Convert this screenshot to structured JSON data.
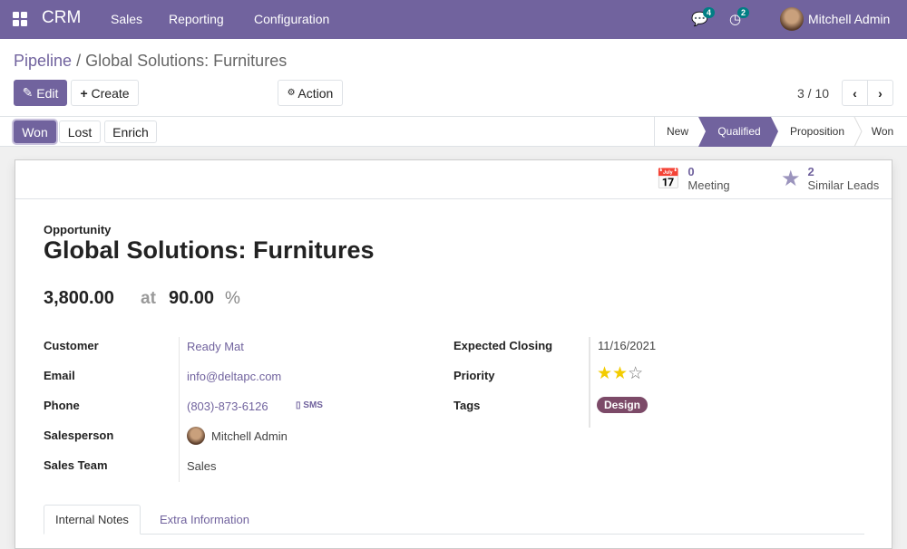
{
  "navbar": {
    "app": "CRM",
    "menus": [
      "Sales",
      "Reporting",
      "Configuration"
    ],
    "messages_count": "4",
    "activities_count": "2",
    "user": "Mitchell Admin",
    "color": "#71639e"
  },
  "breadcrumb": {
    "parent": "Pipeline",
    "separator": "/",
    "current": "Global Solutions: Furnitures"
  },
  "toolbar": {
    "edit": "Edit",
    "create": "Create",
    "action": "Action",
    "pager": "3 / 10"
  },
  "statusbar": {
    "buttons": [
      "Won",
      "Lost",
      "Enrich"
    ],
    "stages": [
      "New",
      "Qualified",
      "Proposition",
      "Won"
    ],
    "active_stage": "Qualified"
  },
  "smart_buttons": [
    {
      "count": "0",
      "label": "Meeting",
      "icon": "calendar-icon"
    },
    {
      "count": "2",
      "label": "Similar Leads",
      "icon": "star-icon"
    }
  ],
  "record": {
    "type_label": "Opportunity",
    "name": "Global Solutions: Furnitures",
    "revenue": "3,800.00",
    "at": "at",
    "probability": "90.00",
    "pct": "%"
  },
  "fields_left": [
    {
      "label": "Customer",
      "value": "Ready Mat"
    },
    {
      "label": "Email",
      "value": "info@deltapc.com"
    },
    {
      "label": "Phone",
      "value": "(803)-873-6126",
      "extra": "SMS"
    },
    {
      "label": "Salesperson",
      "value": "Mitchell Admin"
    },
    {
      "label": "Sales Team",
      "value": "Sales"
    }
  ],
  "fields_right": [
    {
      "label": "Expected Closing",
      "value": "11/16/2021"
    },
    {
      "label": "Priority",
      "stars": 2,
      "max": 3
    },
    {
      "label": "Tags",
      "value": "Design",
      "color": "#7c4a68"
    }
  ],
  "tabs": [
    "Internal Notes",
    "Extra Information"
  ]
}
